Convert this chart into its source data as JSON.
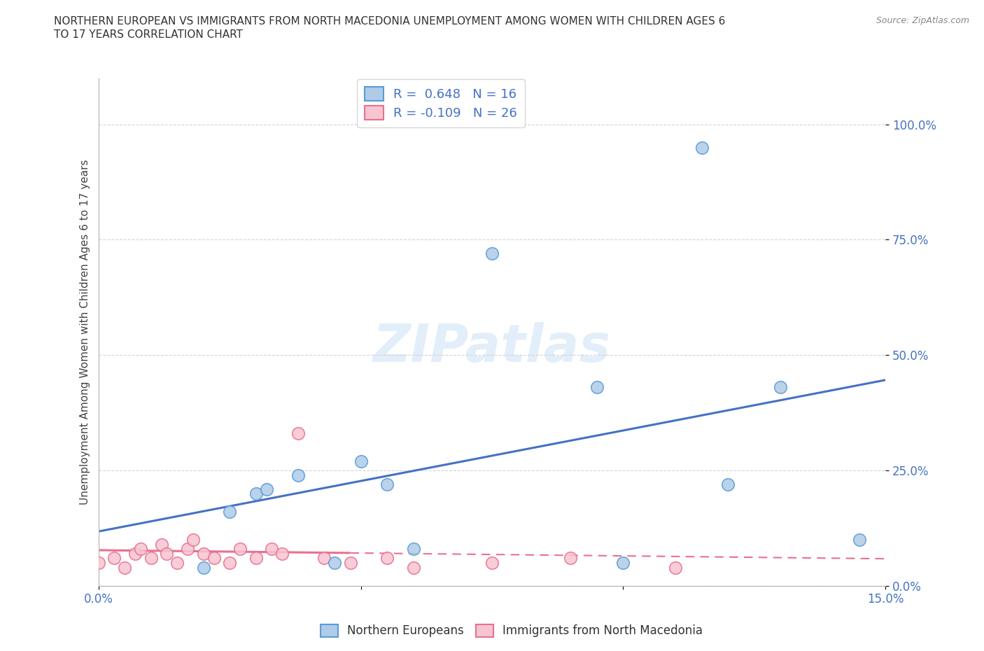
{
  "title_line1": "NORTHERN EUROPEAN VS IMMIGRANTS FROM NORTH MACEDONIA UNEMPLOYMENT AMONG WOMEN WITH CHILDREN AGES 6",
  "title_line2": "TO 17 YEARS CORRELATION CHART",
  "source": "Source: ZipAtlas.com",
  "ylabel": "Unemployment Among Women with Children Ages 6 to 17 years",
  "xmin": 0.0,
  "xmax": 0.15,
  "ymin": 0.0,
  "ymax": 1.1,
  "xticks": [
    0.0,
    0.05,
    0.1,
    0.15
  ],
  "xticklabels": [
    "0.0%",
    "",
    "",
    "15.0%"
  ],
  "yticks": [
    0.0,
    0.25,
    0.5,
    0.75,
    1.0
  ],
  "yticklabels": [
    "0.0%",
    "25.0%",
    "50.0%",
    "75.0%",
    "100.0%"
  ],
  "blue_scatter_x": [
    0.02,
    0.025,
    0.03,
    0.032,
    0.038,
    0.045,
    0.05,
    0.055,
    0.06,
    0.075,
    0.095,
    0.1,
    0.115,
    0.12,
    0.13,
    0.145
  ],
  "blue_scatter_y": [
    0.04,
    0.16,
    0.2,
    0.21,
    0.24,
    0.05,
    0.27,
    0.22,
    0.08,
    0.72,
    0.43,
    0.05,
    0.95,
    0.22,
    0.43,
    0.1
  ],
  "pink_scatter_x": [
    0.0,
    0.003,
    0.005,
    0.007,
    0.008,
    0.01,
    0.012,
    0.013,
    0.015,
    0.017,
    0.018,
    0.02,
    0.022,
    0.025,
    0.027,
    0.03,
    0.033,
    0.035,
    0.038,
    0.043,
    0.048,
    0.055,
    0.06,
    0.075,
    0.09,
    0.11
  ],
  "pink_scatter_y": [
    0.05,
    0.06,
    0.04,
    0.07,
    0.08,
    0.06,
    0.09,
    0.07,
    0.05,
    0.08,
    0.1,
    0.07,
    0.06,
    0.05,
    0.08,
    0.06,
    0.08,
    0.07,
    0.33,
    0.06,
    0.05,
    0.06,
    0.04,
    0.05,
    0.06,
    0.04
  ],
  "blue_R": 0.648,
  "blue_N": 16,
  "pink_R": -0.109,
  "pink_N": 26,
  "blue_color": "#aecce8",
  "blue_edge_color": "#5b9bd5",
  "pink_color": "#f7c5d0",
  "pink_edge_color": "#e87090",
  "blue_line_color": "#4472c4",
  "pink_line_color": "#e87090",
  "watermark": "ZIPatlas",
  "legend_labels": [
    "Northern Europeans",
    "Immigrants from North Macedonia"
  ],
  "background_color": "#ffffff",
  "grid_color": "#d4d4d4"
}
